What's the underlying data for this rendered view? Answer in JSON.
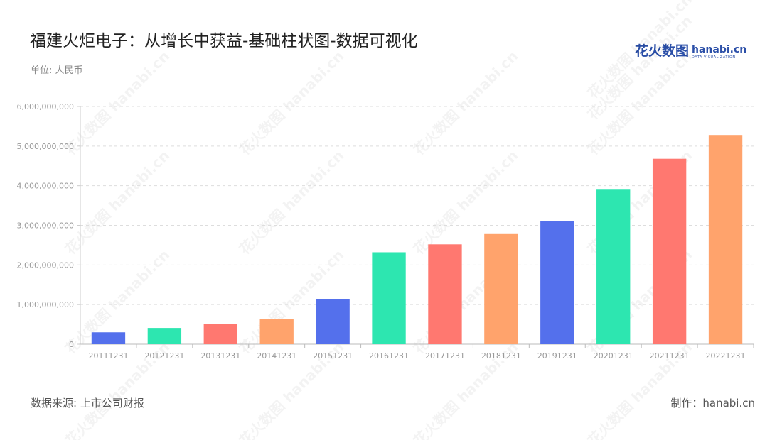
{
  "header": {
    "title": "福建火炬电子：从增长中获益-基础柱状图-数据可视化",
    "unit": "单位: 人民币"
  },
  "logo": {
    "cn": "花火数图",
    "en": "hanabi.cn",
    "sub": "DATA VISUALIZATION"
  },
  "watermark": "花火数图 hanabi.cn",
  "footer": {
    "source": "数据来源: 上市公司财报",
    "credit": "制作：hanabi.cn"
  },
  "chart_data": {
    "type": "bar",
    "title": "福建火炬电子：从增长中获益-基础柱状图-数据可视化",
    "xlabel": "",
    "ylabel": "",
    "ylim": [
      0,
      6000000000
    ],
    "yticks": [
      0,
      1000000000,
      2000000000,
      3000000000,
      4000000000,
      5000000000,
      6000000000
    ],
    "ytick_labels": [
      "0",
      "1,000,000,000",
      "2,000,000,000",
      "3,000,000,000",
      "4,000,000,000",
      "5,000,000,000",
      "6,000,000,000"
    ],
    "grid": true,
    "categories": [
      "20111231",
      "20121231",
      "20131231",
      "20141231",
      "20151231",
      "20161231",
      "20171231",
      "20181231",
      "20191231",
      "20201231",
      "20211231",
      "20221231"
    ],
    "values": [
      300000000,
      410000000,
      510000000,
      630000000,
      1140000000,
      2320000000,
      2520000000,
      2780000000,
      3110000000,
      3900000000,
      4680000000,
      5280000000
    ],
    "colors": [
      "#5470ec",
      "#2de6b0",
      "#ff7870",
      "#ffa36c",
      "#5470ec",
      "#2de6b0",
      "#ff7870",
      "#ffa36c",
      "#5470ec",
      "#2de6b0",
      "#ff7870",
      "#ffa36c"
    ]
  }
}
